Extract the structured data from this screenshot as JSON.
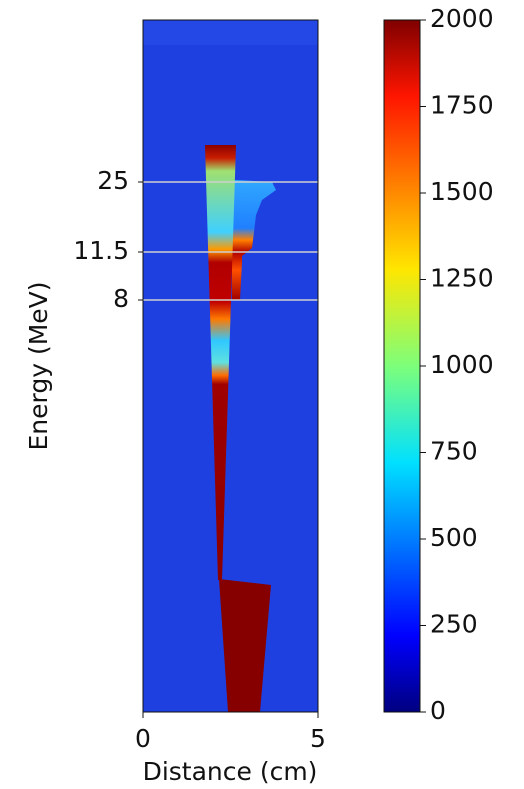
{
  "chart_data": {
    "type": "image",
    "x_label": "Distance (cm)",
    "y_label": "Energy (MeV)",
    "xlim": [
      0,
      5
    ],
    "xticks": [
      0,
      5
    ],
    "yticks": [
      25,
      11.5,
      8
    ],
    "grid_color": "#cfcfcf",
    "colorbar": {
      "colormap": "jet",
      "lim": [
        0,
        2000
      ],
      "ticks": [
        0,
        250,
        500,
        750,
        1000,
        1250,
        1500,
        1750,
        2000
      ]
    }
  }
}
